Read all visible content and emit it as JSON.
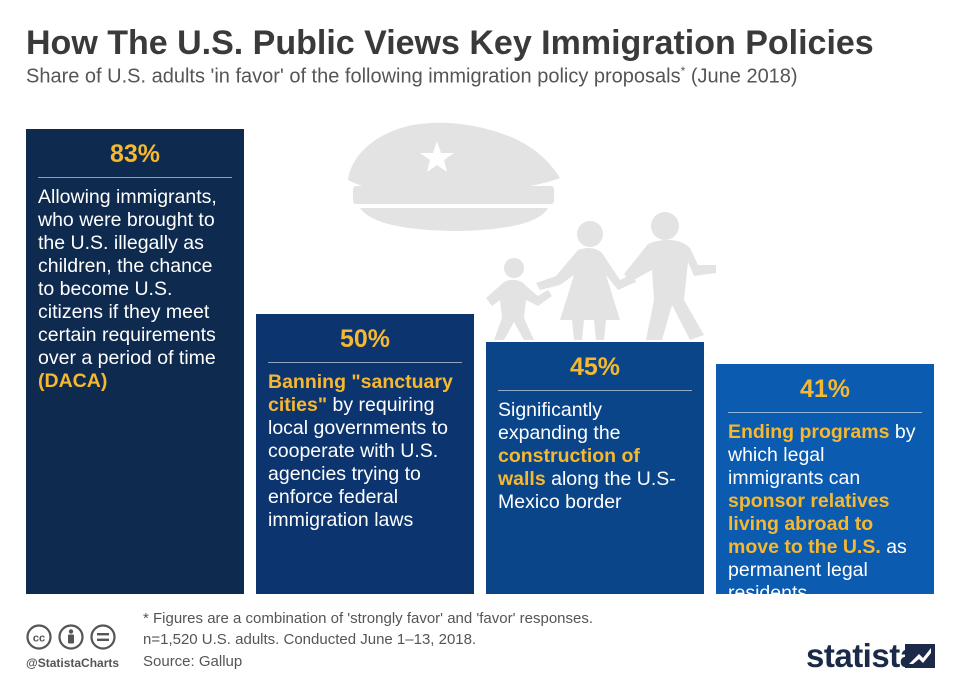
{
  "chart_data": {
    "type": "bar",
    "title": "How The U.S. Public Views Key Immigration Policies",
    "subtitle": "Share of U.S. adults 'in favor' of the following immigration policy proposals",
    "subtitle_mark": "*",
    "subtitle_date": " (June 2018)",
    "unit": "%",
    "ylim": [
      0,
      100
    ],
    "bars": [
      {
        "value": 83,
        "label": "83%",
        "color": "#0e2a4e",
        "description": [
          {
            "t": "Allowing immigrants, who were brought to the U.S. illegally as children, the chance to become U.S. citizens if they meet certain requirements over a period of time "
          },
          {
            "t": "(DACA)",
            "h": true
          }
        ]
      },
      {
        "value": 50,
        "label": "50%",
        "color": "#0c3570",
        "description": [
          {
            "t": "Banning \"sanctuary cities\"",
            "h": true
          },
          {
            "t": " by requiring local governments to cooperate with U.S. agencies trying to enforce federal immigration laws"
          }
        ]
      },
      {
        "value": 45,
        "label": "45%",
        "color": "#0a4589",
        "description": [
          {
            "t": "Significantly expanding the "
          },
          {
            "t": "construction of walls",
            "h": true
          },
          {
            "t": " along the U.S-Mexico border"
          }
        ]
      },
      {
        "value": 41,
        "label": "41%",
        "color": "#0b5bb0",
        "description": [
          {
            "t": "Ending programs",
            "h": true
          },
          {
            "t": " by which legal immigrants can "
          },
          {
            "t": "sponsor relatives living abroad to move to the U.S.",
            "h": true
          },
          {
            "t": " as permanent legal residents"
          }
        ]
      }
    ]
  },
  "footer": {
    "note_line1": "* Figures are a combination of 'strongly favor' and 'favor' responses.",
    "note_line2": "n=1,520 U.S. adults. Conducted June 1–13, 2018.",
    "source": "Source: Gallup",
    "handle": "@StatistaCharts",
    "brand": "statista"
  },
  "colors": {
    "accent": "#f5b82e",
    "illustration": "#e3e3e3",
    "brand": "#1b2a48"
  }
}
